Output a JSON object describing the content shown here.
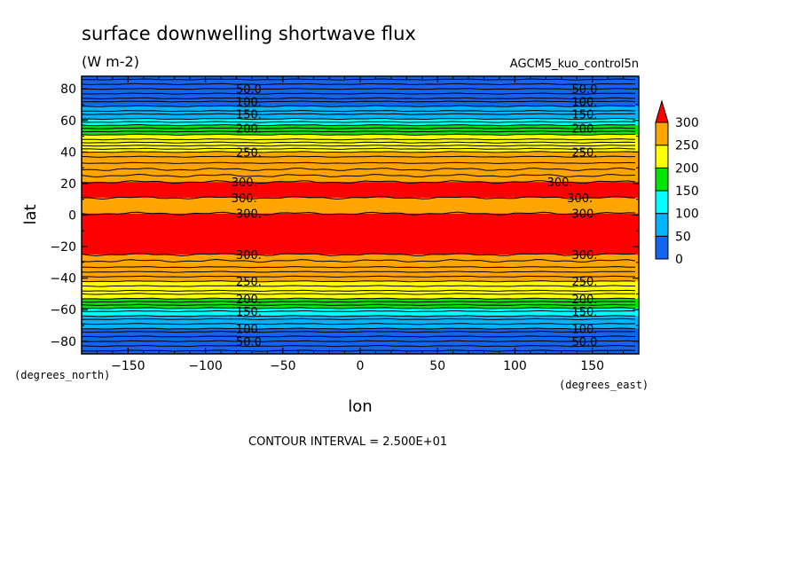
{
  "header": {
    "title": "surface downwelling shortwave flux",
    "units": "(W m-2)",
    "dataset": "AGCM5_kuo_control5n"
  },
  "footer": {
    "contour_interval": "CONTOUR INTERVAL = 2.500E+01"
  },
  "colors": {
    "level_0_50": "#1464f0",
    "level_50_100": "#00b4ff",
    "level_100_150": "#00ffff",
    "level_150_200": "#00e600",
    "level_200_250": "#ffff00",
    "level_250_300": "#ffa500",
    "level_300_plus": "#ff0000"
  },
  "chart_data": {
    "type": "heatmap",
    "plot_style": "filled-contour",
    "title": "surface downwelling shortwave flux",
    "units": "(W m-2)",
    "xlabel": "lon",
    "ylabel": "lat",
    "x_unit_label": "(degrees_east)",
    "y_unit_label": "(degrees_north)",
    "xlim": [
      -180,
      180
    ],
    "ylim": [
      -88,
      88
    ],
    "x_ticks": [
      -150,
      -100,
      -50,
      0,
      50,
      100,
      150
    ],
    "x_tick_labels": [
      "-150",
      "-100",
      "-50",
      "0",
      "50",
      "100",
      "150"
    ],
    "y_ticks": [
      -80,
      -60,
      -40,
      -20,
      0,
      20,
      40,
      60,
      80
    ],
    "y_tick_labels": [
      "-80",
      "-60",
      "-40",
      "-20",
      "0",
      "20",
      "40",
      "60",
      "80"
    ],
    "contour_interval": 25,
    "colorbar": {
      "ticks": [
        0,
        50,
        100,
        150,
        200,
        250,
        300
      ],
      "tick_labels": [
        "0",
        "50",
        "100",
        "150",
        "200",
        "250",
        "300"
      ],
      "bands": [
        {
          "from": 0,
          "to": 50,
          "color": "#1464f0"
        },
        {
          "from": 50,
          "to": 100,
          "color": "#00b4ff"
        },
        {
          "from": 100,
          "to": 150,
          "color": "#00ffff"
        },
        {
          "from": 150,
          "to": 200,
          "color": "#00e600"
        },
        {
          "from": 200,
          "to": 250,
          "color": "#ffff00"
        },
        {
          "from": 250,
          "to": 300,
          "color": "#ffa500"
        },
        {
          "from": 300,
          "to": 350,
          "color": "#ff0000"
        }
      ],
      "extend": "max"
    },
    "zonal_bands": [
      {
        "lat_from": 69,
        "lat_to": 88,
        "color": "#1464f0"
      },
      {
        "lat_from": 61,
        "lat_to": 69,
        "color": "#00b4ff"
      },
      {
        "lat_from": 57,
        "lat_to": 61,
        "color": "#00ffff"
      },
      {
        "lat_from": 51,
        "lat_to": 57,
        "color": "#00e600"
      },
      {
        "lat_from": 40,
        "lat_to": 51,
        "color": "#ffff00"
      },
      {
        "lat_from": 21,
        "lat_to": 40,
        "color": "#ffa500"
      },
      {
        "lat_from": 11,
        "lat_to": 21,
        "color": "#ff0000"
      },
      {
        "lat_from": 1,
        "lat_to": 11,
        "color": "#ffa500"
      },
      {
        "lat_from": -25,
        "lat_to": 1,
        "color": "#ff0000"
      },
      {
        "lat_from": -42,
        "lat_to": -25,
        "color": "#ffa500"
      },
      {
        "lat_from": -53,
        "lat_to": -42,
        "color": "#ffff00"
      },
      {
        "lat_from": -59,
        "lat_to": -53,
        "color": "#00e600"
      },
      {
        "lat_from": -64,
        "lat_to": -59,
        "color": "#00ffff"
      },
      {
        "lat_from": -72,
        "lat_to": -64,
        "color": "#00b4ff"
      },
      {
        "lat_from": -88,
        "lat_to": -72,
        "color": "#1464f0"
      }
    ],
    "contour_lines_lat": [
      86,
      83,
      80,
      77,
      74,
      72,
      69,
      66,
      64,
      61,
      59,
      57,
      55,
      53,
      51,
      48,
      46,
      44,
      42,
      40,
      37,
      33,
      29,
      25,
      21,
      11,
      1,
      -25,
      -29,
      -33,
      -36,
      -39,
      -42,
      -45,
      -48,
      -50,
      -53,
      -55,
      -57,
      -59,
      -61,
      -64,
      -66,
      -69,
      -72,
      -74,
      -77,
      -80,
      -83,
      -86
    ],
    "contour_labels": [
      {
        "text": "50.0",
        "lon": -72,
        "lat": 80
      },
      {
        "text": "50.0",
        "lon": 145,
        "lat": 80
      },
      {
        "text": "100.",
        "lon": -72,
        "lat": 72
      },
      {
        "text": "100.",
        "lon": 145,
        "lat": 72
      },
      {
        "text": "150.",
        "lon": -72,
        "lat": 64
      },
      {
        "text": "150.",
        "lon": 145,
        "lat": 64
      },
      {
        "text": "200.",
        "lon": -72,
        "lat": 55
      },
      {
        "text": "200.",
        "lon": 145,
        "lat": 55
      },
      {
        "text": "250.",
        "lon": -72,
        "lat": 40
      },
      {
        "text": "250.",
        "lon": 145,
        "lat": 40
      },
      {
        "text": "300.",
        "lon": -75,
        "lat": 21
      },
      {
        "text": "300.",
        "lon": 129,
        "lat": 21
      },
      {
        "text": "300.",
        "lon": -75,
        "lat": 11
      },
      {
        "text": "300.",
        "lon": 142,
        "lat": 11
      },
      {
        "text": "300.",
        "lon": -72,
        "lat": 1
      },
      {
        "text": "300.",
        "lon": 145,
        "lat": 1
      },
      {
        "text": "300.",
        "lon": -72,
        "lat": -25
      },
      {
        "text": "300.",
        "lon": 145,
        "lat": -25
      },
      {
        "text": "250.",
        "lon": -72,
        "lat": -42
      },
      {
        "text": "250.",
        "lon": 145,
        "lat": -42
      },
      {
        "text": "200.",
        "lon": -72,
        "lat": -53
      },
      {
        "text": "200.",
        "lon": 145,
        "lat": -53
      },
      {
        "text": "150.",
        "lon": -72,
        "lat": -61
      },
      {
        "text": "150.",
        "lon": 145,
        "lat": -61
      },
      {
        "text": "100.",
        "lon": -72,
        "lat": -72
      },
      {
        "text": "100.",
        "lon": 145,
        "lat": -72
      },
      {
        "text": "50.0",
        "lon": -72,
        "lat": -80
      },
      {
        "text": "50.0",
        "lon": 145,
        "lat": -80
      }
    ]
  }
}
